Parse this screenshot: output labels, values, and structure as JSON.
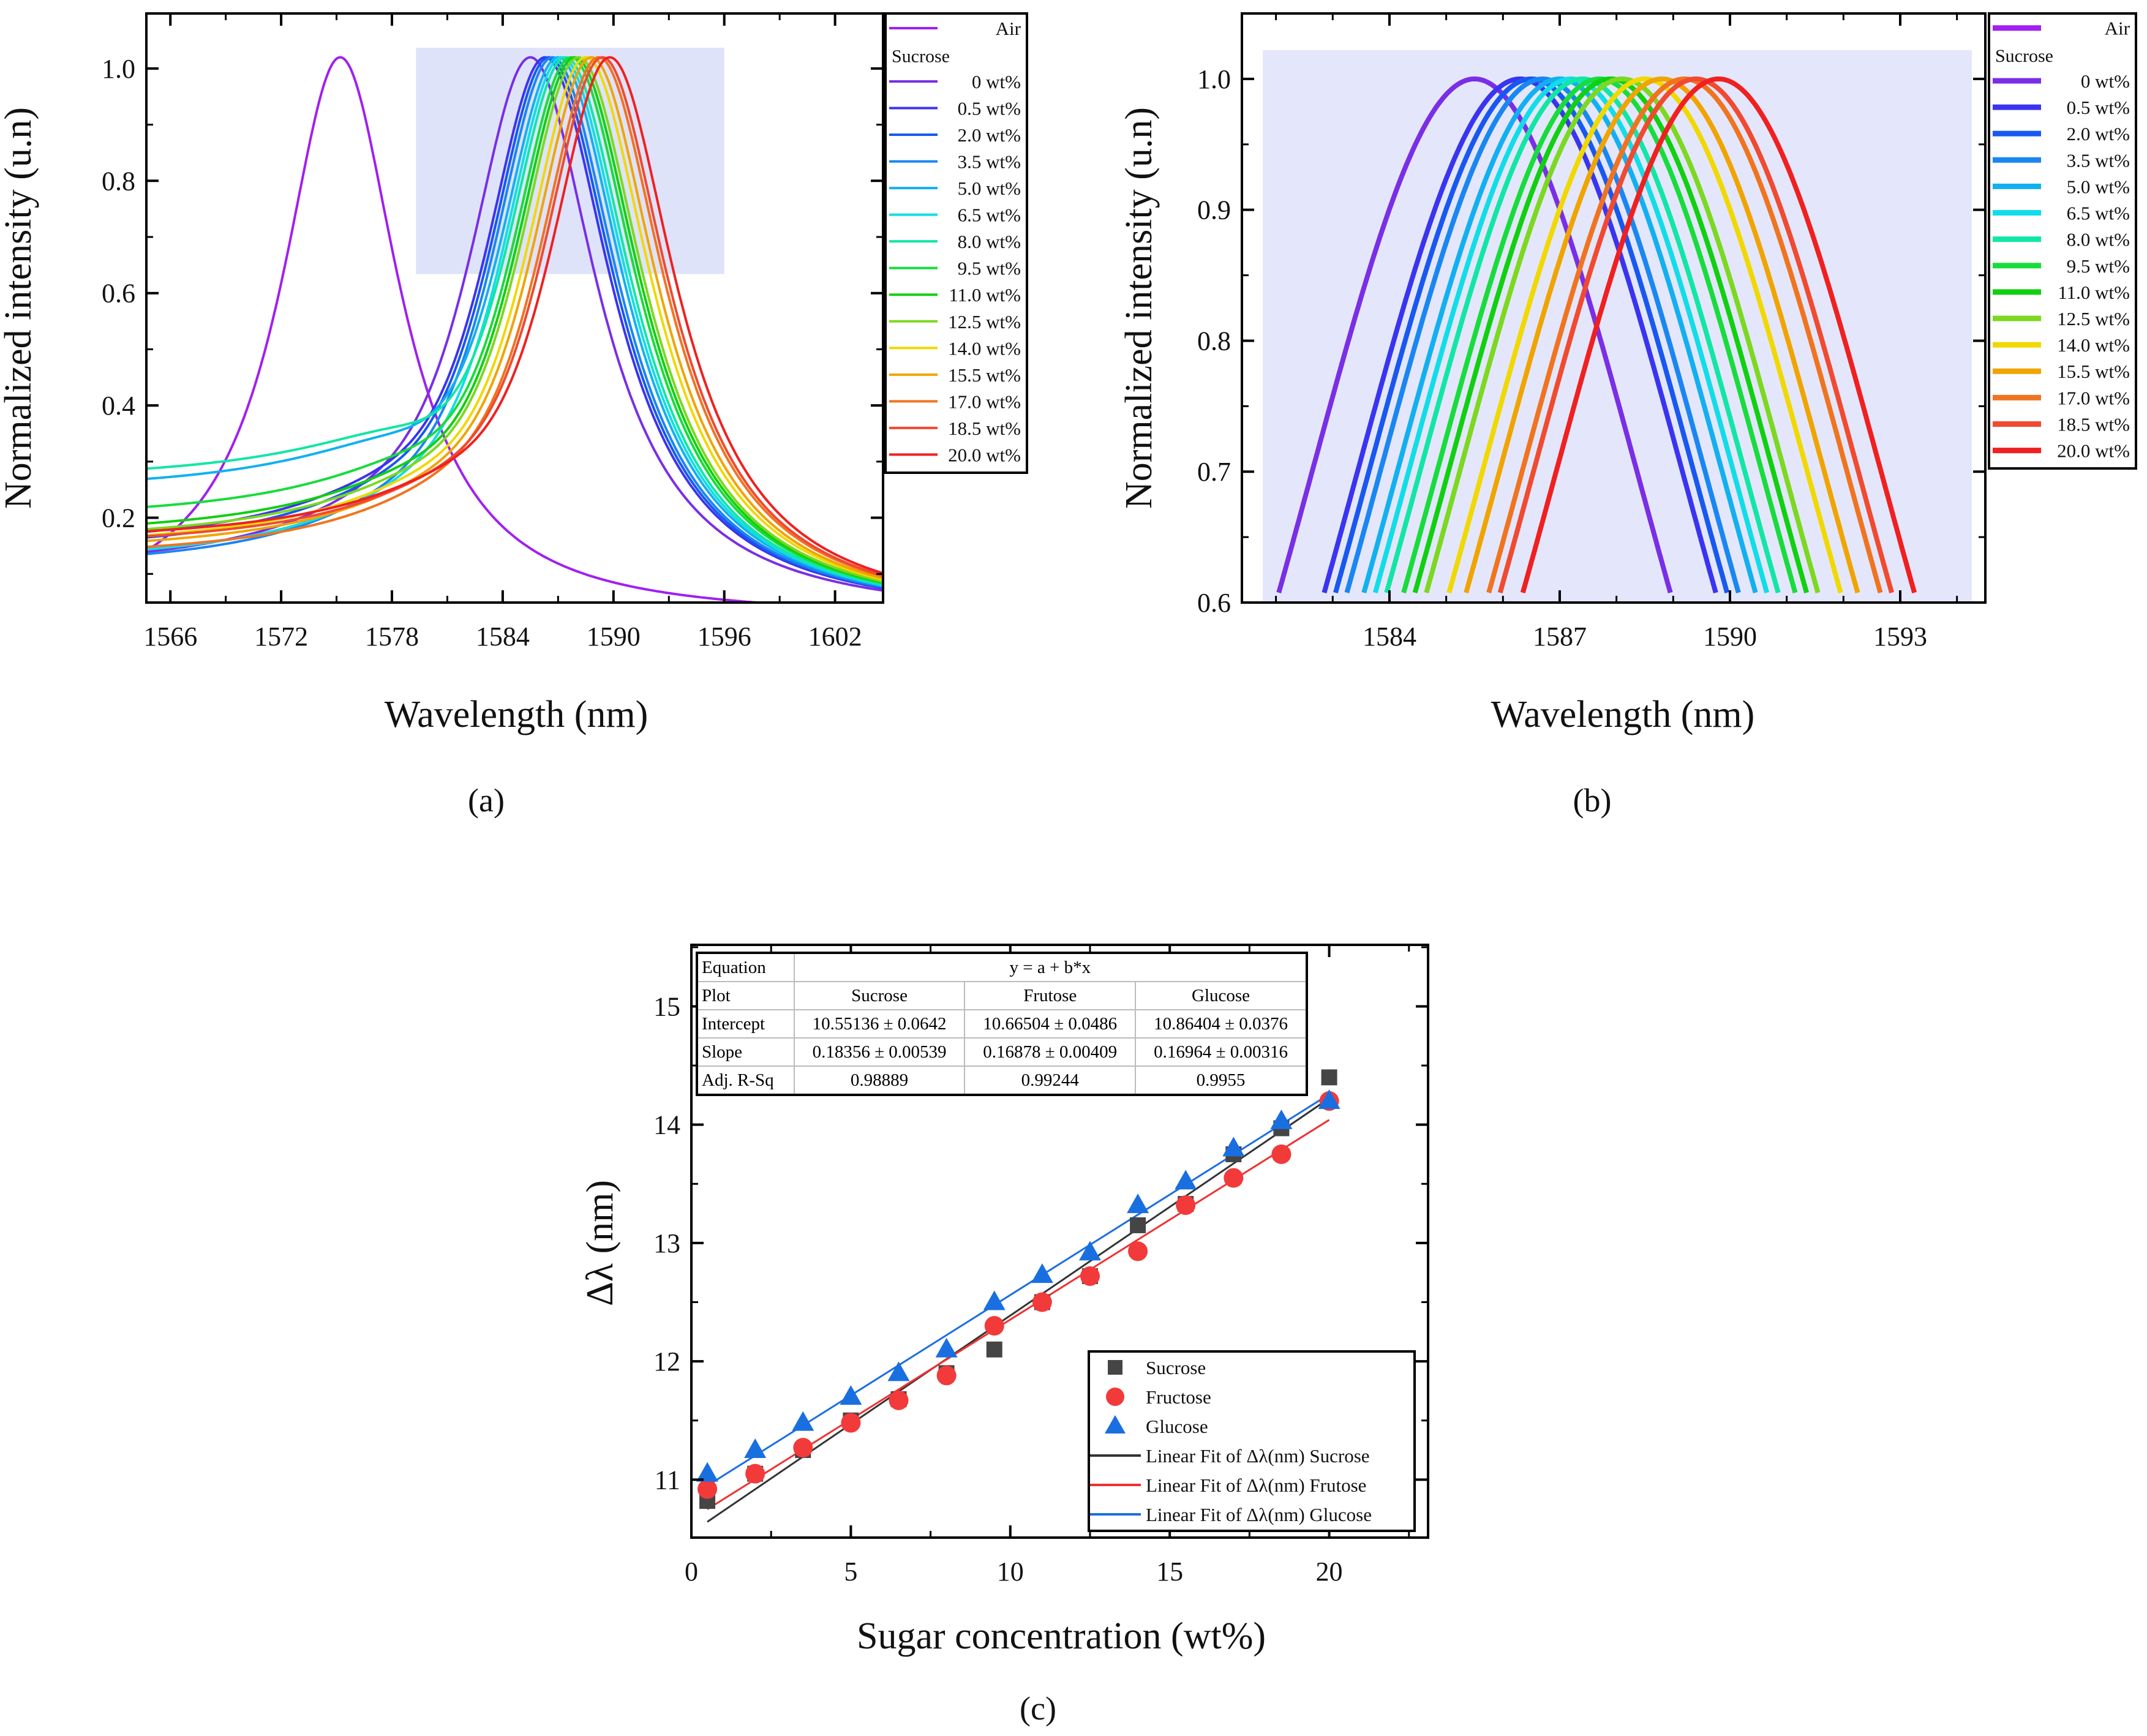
{
  "panel_labels": {
    "a": "(a)",
    "b": "(b)",
    "c": "(c)"
  },
  "chart_data": [
    {
      "id": "a",
      "type": "line",
      "xlabel": "Wavelength (nm)",
      "ylabel": "Normalized intensity (u.n)",
      "xlim": [
        1564.7,
        1604.6
      ],
      "ylim": [
        0.049,
        1.098
      ],
      "xticks": [
        "1566",
        "1572",
        "1578",
        "1584",
        "1590",
        "1596",
        "1602"
      ],
      "yticks": [
        "0.2",
        "0.4",
        "0.6",
        "0.8",
        "1.0"
      ],
      "highlight_region": {
        "x": [
          1579.3,
          1596.0
        ],
        "y": [
          0.634,
          1.037
        ],
        "color": "#dfe3fa"
      },
      "legend": {
        "placement": "right-outside",
        "group_title": "Sucrose"
      },
      "series": [
        {
          "name": "Air",
          "peak_nm": 1575.2,
          "left_level": 0.1,
          "color": "#a020f0"
        },
        {
          "name": "0   wt%",
          "peak_nm": 1585.5,
          "left_level": 0.08,
          "color": "#7a2ee6"
        },
        {
          "name": "0.5 wt%",
          "peak_nm": 1586.3,
          "left_level": 0.12,
          "color": "#3a34f0"
        },
        {
          "name": "2.0 wt%",
          "peak_nm": 1586.5,
          "left_level": 0.11,
          "color": "#1858f0"
        },
        {
          "name": "3.5 wt%",
          "peak_nm": 1586.7,
          "left_level": 0.08,
          "color": "#1a86f2"
        },
        {
          "name": "5.0 wt%",
          "peak_nm": 1587.0,
          "left_level": 0.22,
          "color": "#12b0f0"
        },
        {
          "name": "6.5 wt%",
          "peak_nm": 1587.2,
          "left_level": 0.09,
          "color": "#10dde8"
        },
        {
          "name": "8.0 wt%",
          "peak_nm": 1587.4,
          "left_level": 0.24,
          "color": "#12e6a6"
        },
        {
          "name": "9.5 wt%",
          "peak_nm": 1587.7,
          "left_level": 0.17,
          "color": "#18dc3c"
        },
        {
          "name": "11.0 wt%",
          "peak_nm": 1587.9,
          "left_level": 0.14,
          "color": "#10d010"
        },
        {
          "name": "12.5 wt%",
          "peak_nm": 1588.1,
          "left_level": 0.13,
          "color": "#7cd820"
        },
        {
          "name": "14.0 wt%",
          "peak_nm": 1588.5,
          "left_level": 0.12,
          "color": "#f0d800"
        },
        {
          "name": "15.5 wt%",
          "peak_nm": 1588.8,
          "left_level": 0.11,
          "color": "#f0a400"
        },
        {
          "name": "17.0 wt%",
          "peak_nm": 1589.2,
          "left_level": 0.1,
          "color": "#f07420"
        },
        {
          "name": "18.5 wt%",
          "peak_nm": 1589.4,
          "left_level": 0.12,
          "color": "#f04a30"
        },
        {
          "name": "20.0 wt%",
          "peak_nm": 1589.8,
          "left_level": 0.13,
          "color": "#f02020"
        }
      ]
    },
    {
      "id": "b",
      "type": "line",
      "xlabel": "Wavelength (nm)",
      "ylabel": "Normalized intensity (u.n)",
      "xlim": [
        1581.4,
        1594.5
      ],
      "ylim": [
        0.6,
        1.05
      ],
      "xticks": [
        "1584",
        "1587",
        "1590",
        "1593"
      ],
      "yticks": [
        "0.6",
        "0.7",
        "0.8",
        "0.9",
        "1.0"
      ],
      "highlight_region": {
        "y_top": 1.022,
        "color": "#e4e7fb"
      },
      "legend": {
        "placement": "right-outside",
        "group_title": "Sucrose"
      },
      "series_ref": "same as panel a"
    },
    {
      "id": "c",
      "type": "scatter",
      "xlabel": "Sugar concentration (wt%)",
      "ylabel": "Δλ (nm)",
      "xlim": [
        0,
        23.1
      ],
      "ylim": [
        10.51,
        15.52
      ],
      "xticks": [
        "0",
        "5",
        "10",
        "15",
        "20"
      ],
      "yticks": [
        "11",
        "12",
        "13",
        "14",
        "15"
      ],
      "x": [
        0.5,
        2,
        3.5,
        5,
        6.5,
        8,
        9.5,
        11,
        12.5,
        14,
        15.5,
        17,
        18.5,
        20
      ],
      "series": [
        {
          "name": "Sucrose",
          "marker": "square",
          "color": "#454545",
          "values": [
            10.82,
            11.05,
            11.25,
            11.5,
            11.68,
            11.9,
            12.1,
            12.5,
            12.72,
            13.15,
            13.33,
            13.75,
            13.97,
            14.4
          ],
          "fit_label": "Linear Fit of Δλ(nm) Sucrose",
          "fit_color": "#333333",
          "intercept": 10.55136,
          "slope": 0.18356
        },
        {
          "name": "Fructose",
          "marker": "circle",
          "color": "#f23a3a",
          "values": [
            10.92,
            11.05,
            11.27,
            11.48,
            11.67,
            11.88,
            12.3,
            12.5,
            12.72,
            12.93,
            13.32,
            13.55,
            13.75,
            14.2
          ],
          "fit_label": "Linear Fit of Δλ(nm) Frutose",
          "fit_color": "#f03030",
          "intercept": 10.66504,
          "slope": 0.16878
        },
        {
          "name": "Glucose",
          "marker": "triangle",
          "color": "#1a6fe0",
          "values": [
            11.05,
            11.25,
            11.48,
            11.7,
            11.9,
            12.1,
            12.5,
            12.73,
            12.92,
            13.32,
            13.52,
            13.8,
            14.03,
            14.2
          ],
          "fit_label": "Linear Fit of Δλ(nm) Glucose",
          "fit_color": "#1a6fe0",
          "intercept": 10.86404,
          "slope": 0.16964
        }
      ],
      "legend": {
        "placement": "bottom-right"
      },
      "fit_table": {
        "equation_label": "Equation",
        "equation": "y = a + b*x",
        "plot_label": "Plot",
        "columns": [
          "Sucrose",
          "Frutose",
          "Glucose"
        ],
        "rows": [
          {
            "label": "Intercept",
            "values": [
              "10.55136 ± 0.0642",
              "10.66504 ± 0.0486",
              "10.86404 ± 0.0376"
            ]
          },
          {
            "label": "Slope",
            "values": [
              "0.18356 ± 0.00539",
              "0.16878 ± 0.00409",
              "0.16964 ± 0.00316"
            ]
          },
          {
            "label": "Adj. R-Sq",
            "values": [
              "0.98889",
              "0.99244",
              "0.9955"
            ]
          }
        ]
      }
    }
  ]
}
